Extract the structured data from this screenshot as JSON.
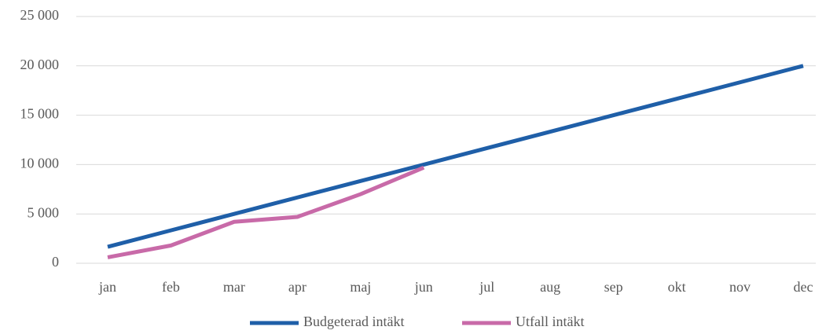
{
  "chart_data": {
    "type": "line",
    "categories": [
      "jan",
      "feb",
      "mar",
      "apr",
      "maj",
      "jun",
      "jul",
      "aug",
      "sep",
      "okt",
      "nov",
      "dec"
    ],
    "series": [
      {
        "name": "Budgeterad intäkt",
        "color": "#1f5fa8",
        "values": [
          1667,
          3333,
          5000,
          6667,
          8333,
          10000,
          11667,
          13333,
          15000,
          16667,
          18333,
          20000
        ]
      },
      {
        "name": "Utfall intäkt",
        "color": "#c86aa8",
        "values": [
          600,
          1800,
          4200,
          4700,
          7000,
          9700,
          null,
          null,
          null,
          null,
          null,
          null
        ]
      }
    ],
    "ylim": [
      0,
      25000
    ],
    "yticks": [
      0,
      {
        "value": 5000,
        "label": "5 000"
      },
      {
        "value": 10000,
        "label": "10 000"
      },
      {
        "value": 15000,
        "label": "15 000"
      },
      {
        "value": 20000,
        "label": "20 000"
      },
      {
        "value": 25000,
        "label": "25 000"
      }
    ],
    "grid": true,
    "legend": "bottom"
  }
}
